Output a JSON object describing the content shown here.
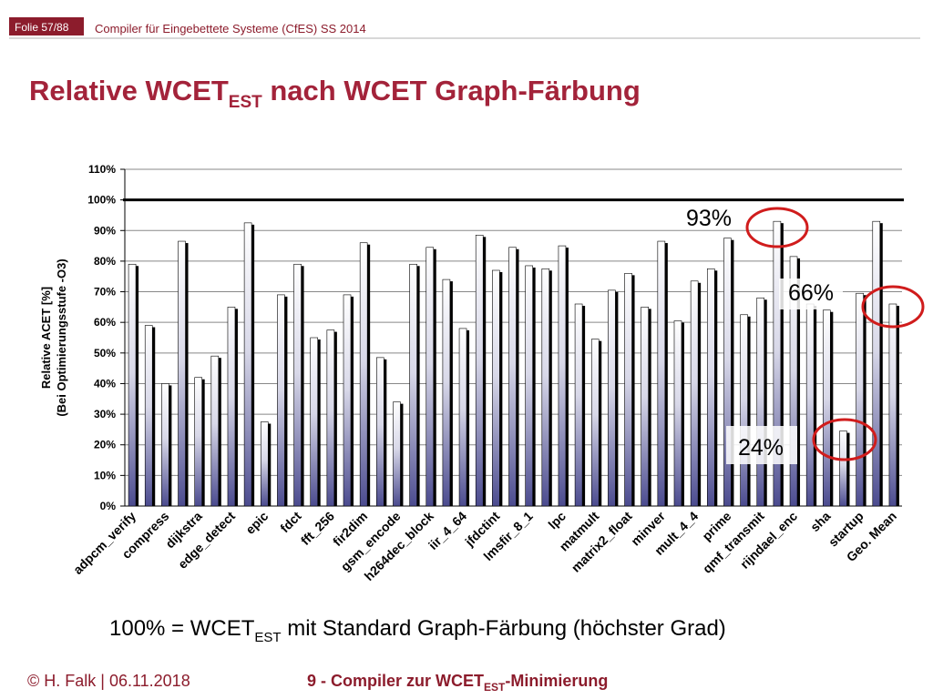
{
  "slide": {
    "folie": "Folie 57/88",
    "course": "Compiler für Eingebettete Systeme (CfES) SS 2014",
    "title": {
      "main": "Relative WCET",
      "sub": "EST",
      "rest": " nach WCET Graph-Färbung"
    },
    "caption": {
      "main": "100% = WCET",
      "sub": "EST",
      "rest": " mit Standard Graph-Färbung (höchster Grad)"
    },
    "footer_left": "© H. Falk | 06.11.2018",
    "footer_center": {
      "main": "9 - Compiler zur WCET",
      "sub": "EST",
      "rest": "-Minimierung"
    }
  },
  "chart_data": {
    "type": "bar",
    "ylabel": [
      "Relative ACET [%]",
      "(Bei Optimierungsstufe -O3)"
    ],
    "categories": [
      "adpcm_verify",
      null,
      "compress",
      null,
      "dijkstra",
      null,
      "edge_detect",
      null,
      "epic",
      null,
      "fdct",
      null,
      "fft_256",
      null,
      "fir2dim",
      null,
      "gsm_encode",
      null,
      "h264dec_block",
      null,
      "iir_4_64",
      null,
      "jfdctint",
      null,
      "lmsfir_8_1",
      null,
      "lpc",
      null,
      "matmult",
      null,
      "matrix2_float",
      null,
      "minver",
      null,
      "mult_4_4",
      null,
      "prime",
      null,
      "qmf_transmit",
      null,
      "rijndael_enc",
      null,
      "sha",
      null,
      "startup",
      null,
      "Geo. Mean"
    ],
    "values": [
      79,
      59,
      40,
      86.5,
      42,
      49,
      65,
      92.5,
      27.5,
      69,
      79,
      55,
      57.5,
      69,
      86,
      48.5,
      34,
      79,
      84.5,
      74,
      58,
      88.5,
      77,
      84.5,
      78.5,
      77.5,
      85,
      66,
      54.5,
      70.5,
      76,
      65,
      86.5,
      60.5,
      73.5,
      77.5,
      87.5,
      62.5,
      68,
      93,
      81.5,
      66,
      64,
      24.5,
      69.5,
      93,
      66
    ],
    "color": "#4b4b8f",
    "ylim": [
      0,
      110
    ],
    "yticks": [
      {
        "value": 0,
        "label": "0%"
      },
      {
        "value": 10,
        "label": "10%"
      },
      {
        "value": 20,
        "label": "20%"
      },
      {
        "value": 30,
        "label": "30%"
      },
      {
        "value": 40,
        "label": "40%"
      },
      {
        "value": 50,
        "label": "50%"
      },
      {
        "value": 60,
        "label": "60%"
      },
      {
        "value": 70,
        "label": "70%"
      },
      {
        "value": 80,
        "label": "80%"
      },
      {
        "value": 90,
        "label": "90%"
      },
      {
        "value": 100,
        "label": "100%"
      },
      {
        "value": 110,
        "label": "110%"
      }
    ],
    "grid": true,
    "reference_line": 100,
    "annotations": [
      "93%",
      "66%",
      "24%"
    ]
  }
}
